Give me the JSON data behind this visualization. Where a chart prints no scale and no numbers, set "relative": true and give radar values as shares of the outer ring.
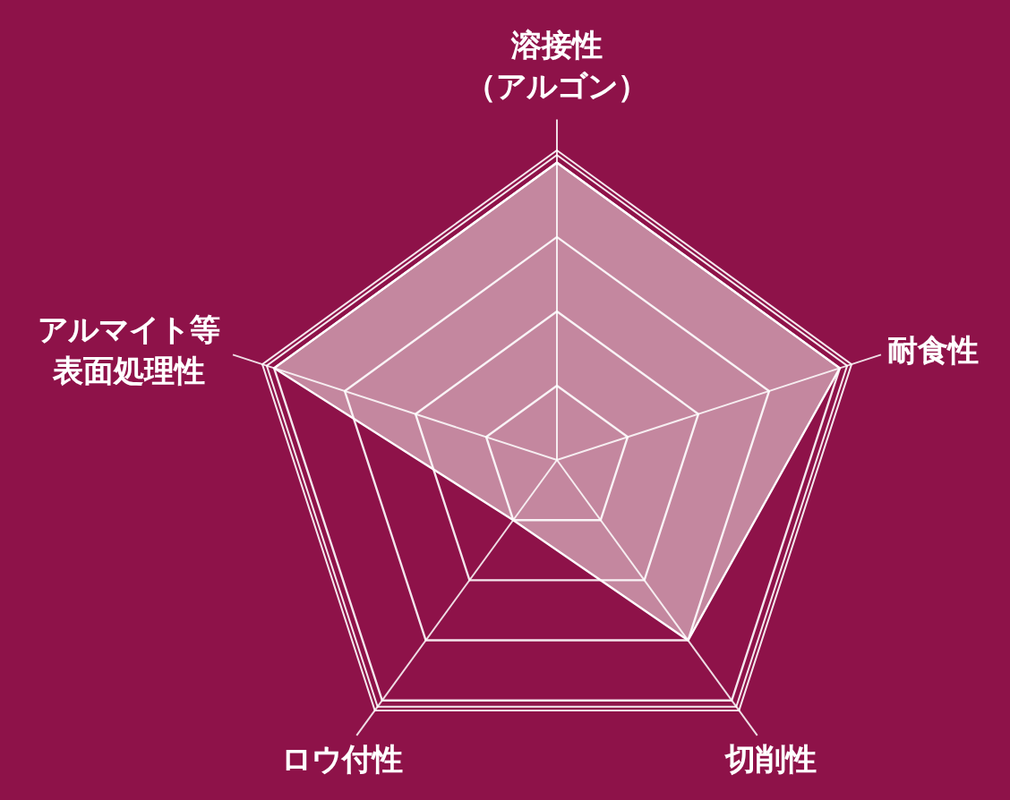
{
  "chart_data": {
    "type": "radar",
    "relative": true,
    "categories": [
      "溶接性（アルゴン）",
      "耐食性",
      "切削性",
      "ロウ付性",
      "アルマイト等表面処理性"
    ],
    "series": [
      {
        "color": "#c4879f",
        "values": [
          0.96,
          0.96,
          0.72,
          0.24,
          0.96
        ]
      }
    ]
  }
}
